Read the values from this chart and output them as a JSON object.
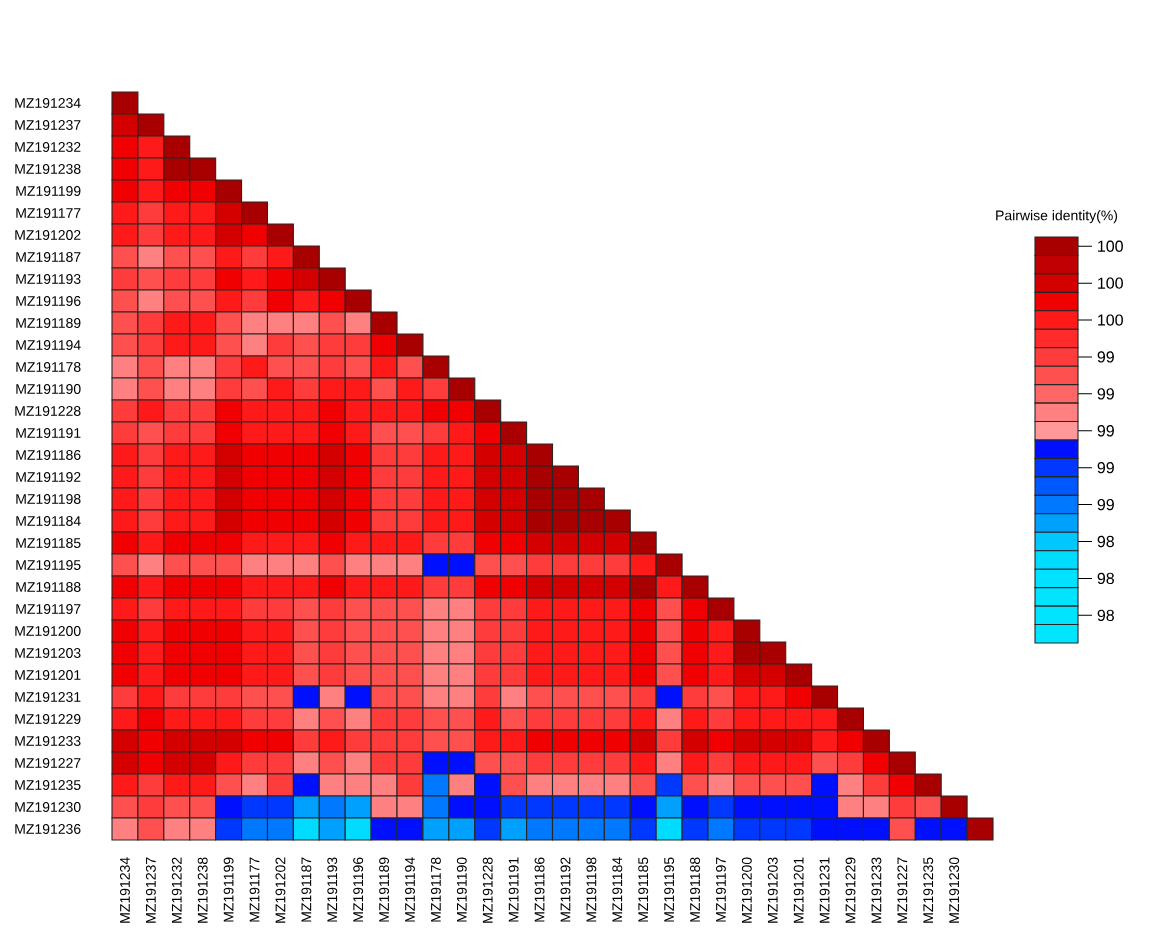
{
  "chart_data": {
    "type": "heatmap",
    "clabel": "Pairwise identity(%)",
    "categories": [
      "MZ191234",
      "MZ191237",
      "MZ191232",
      "MZ191238",
      "MZ191199",
      "MZ191177",
      "MZ191202",
      "MZ191187",
      "MZ191193",
      "MZ191196",
      "MZ191189",
      "MZ191194",
      "MZ191178",
      "MZ191190",
      "MZ191228",
      "MZ191191",
      "MZ191186",
      "MZ191192",
      "MZ191198",
      "MZ191184",
      "MZ191185",
      "MZ191195",
      "MZ191188",
      "MZ191197",
      "MZ191200",
      "MZ191203",
      "MZ191201",
      "MZ191231",
      "MZ191229",
      "MZ191233",
      "MZ191227",
      "MZ191235",
      "MZ191230",
      null
    ],
    "y_categories": [
      "MZ191234",
      "MZ191237",
      "MZ191232",
      "MZ191238",
      "MZ191199",
      "MZ191177",
      "MZ191202",
      "MZ191187",
      "MZ191193",
      "MZ191196",
      "MZ191189",
      "MZ191194",
      "MZ191178",
      "MZ191190",
      "MZ191228",
      "MZ191191",
      "MZ191186",
      "MZ191192",
      "MZ191198",
      "MZ191184",
      "MZ191185",
      "MZ191195",
      "MZ191188",
      "MZ191197",
      "MZ191200",
      "MZ191203",
      "MZ191201",
      "MZ191231",
      "MZ191229",
      "MZ191233",
      "MZ191227",
      "MZ191235",
      "MZ191230",
      "MZ191236"
    ],
    "clim": [
      97.8,
      100.0
    ],
    "cticks": [
      {
        "value": 99.95,
        "label": "100"
      },
      {
        "value": 99.75,
        "label": "100"
      },
      {
        "value": 99.55,
        "label": "100"
      },
      {
        "value": 99.35,
        "label": "99"
      },
      {
        "value": 99.15,
        "label": "99"
      },
      {
        "value": 98.95,
        "label": "99"
      },
      {
        "value": 98.75,
        "label": "99"
      },
      {
        "value": 98.55,
        "label": "99"
      },
      {
        "value": 98.35,
        "label": "98"
      },
      {
        "value": 98.15,
        "label": "98"
      },
      {
        "value": 97.95,
        "label": "98"
      }
    ],
    "cells": [
      [
        99.95,
        null,
        null,
        null,
        null,
        null,
        null,
        null,
        null,
        null,
        null,
        null,
        null,
        null,
        null,
        null,
        null,
        null,
        null,
        null,
        null,
        null,
        null,
        null,
        null,
        null,
        null,
        null,
        null,
        null,
        null,
        null,
        null,
        null
      ],
      [
        99.75,
        99.95,
        null,
        null,
        null,
        null,
        null,
        null,
        null,
        null,
        null,
        null,
        null,
        null,
        null,
        null,
        null,
        null,
        null,
        null,
        null,
        null,
        null,
        null,
        null,
        null,
        null,
        null,
        null,
        null,
        null,
        null,
        null,
        null
      ],
      [
        99.65,
        99.55,
        99.95,
        null,
        null,
        null,
        null,
        null,
        null,
        null,
        null,
        null,
        null,
        null,
        null,
        null,
        null,
        null,
        null,
        null,
        null,
        null,
        null,
        null,
        null,
        null,
        null,
        null,
        null,
        null,
        null,
        null,
        null,
        null
      ],
      [
        99.65,
        99.55,
        99.95,
        99.95,
        null,
        null,
        null,
        null,
        null,
        null,
        null,
        null,
        null,
        null,
        null,
        null,
        null,
        null,
        null,
        null,
        null,
        null,
        null,
        null,
        null,
        null,
        null,
        null,
        null,
        null,
        null,
        null,
        null,
        null
      ],
      [
        99.65,
        99.55,
        99.65,
        99.65,
        99.95,
        null,
        null,
        null,
        null,
        null,
        null,
        null,
        null,
        null,
        null,
        null,
        null,
        null,
        null,
        null,
        null,
        null,
        null,
        null,
        null,
        null,
        null,
        null,
        null,
        null,
        null,
        null,
        null,
        null
      ],
      [
        99.55,
        99.35,
        99.55,
        99.55,
        99.75,
        99.95,
        null,
        null,
        null,
        null,
        null,
        null,
        null,
        null,
        null,
        null,
        null,
        null,
        null,
        null,
        null,
        null,
        null,
        null,
        null,
        null,
        null,
        null,
        null,
        null,
        null,
        null,
        null,
        null
      ],
      [
        99.55,
        99.35,
        99.55,
        99.55,
        99.75,
        99.65,
        99.95,
        null,
        null,
        null,
        null,
        null,
        null,
        null,
        null,
        null,
        null,
        null,
        null,
        null,
        null,
        null,
        null,
        null,
        null,
        null,
        null,
        null,
        null,
        null,
        null,
        null,
        null,
        null
      ],
      [
        99.25,
        99.05,
        99.25,
        99.25,
        99.55,
        99.35,
        99.55,
        99.95,
        null,
        null,
        null,
        null,
        null,
        null,
        null,
        null,
        null,
        null,
        null,
        null,
        null,
        null,
        null,
        null,
        null,
        null,
        null,
        null,
        null,
        null,
        null,
        null,
        null,
        null
      ],
      [
        99.35,
        99.25,
        99.35,
        99.35,
        99.65,
        99.55,
        99.65,
        99.75,
        99.95,
        null,
        null,
        null,
        null,
        null,
        null,
        null,
        null,
        null,
        null,
        null,
        null,
        null,
        null,
        null,
        null,
        null,
        null,
        null,
        null,
        null,
        null,
        null,
        null,
        null
      ],
      [
        99.25,
        99.05,
        99.25,
        99.25,
        99.55,
        99.35,
        99.65,
        99.55,
        99.65,
        99.95,
        null,
        null,
        null,
        null,
        null,
        null,
        null,
        null,
        null,
        null,
        null,
        null,
        null,
        null,
        null,
        null,
        null,
        null,
        null,
        null,
        null,
        null,
        null,
        null
      ],
      [
        99.25,
        99.35,
        99.55,
        99.55,
        99.25,
        99.05,
        99.05,
        99.05,
        99.25,
        99.05,
        99.95,
        null,
        null,
        null,
        null,
        null,
        null,
        null,
        null,
        null,
        null,
        null,
        null,
        null,
        null,
        null,
        null,
        null,
        null,
        null,
        null,
        null,
        null,
        null
      ],
      [
        99.25,
        99.35,
        99.55,
        99.55,
        99.25,
        99.05,
        99.35,
        99.25,
        99.35,
        99.35,
        99.65,
        99.95,
        null,
        null,
        null,
        null,
        null,
        null,
        null,
        null,
        null,
        null,
        null,
        null,
        null,
        null,
        null,
        null,
        null,
        null,
        null,
        null,
        null,
        null
      ],
      [
        99.05,
        99.25,
        99.05,
        99.05,
        99.35,
        99.55,
        99.25,
        99.25,
        99.35,
        99.25,
        99.55,
        99.25,
        99.95,
        null,
        null,
        null,
        null,
        null,
        null,
        null,
        null,
        null,
        null,
        null,
        null,
        null,
        null,
        null,
        null,
        null,
        null,
        null,
        null,
        null
      ],
      [
        99.05,
        99.25,
        99.05,
        99.05,
        99.35,
        99.25,
        99.55,
        99.35,
        99.55,
        99.55,
        99.25,
        99.55,
        99.35,
        99.95,
        null,
        null,
        null,
        null,
        null,
        null,
        null,
        null,
        null,
        null,
        null,
        null,
        null,
        null,
        null,
        null,
        null,
        null,
        null,
        null
      ],
      [
        99.35,
        99.55,
        99.35,
        99.35,
        99.65,
        99.55,
        99.55,
        99.55,
        99.65,
        99.55,
        99.55,
        99.55,
        99.65,
        99.65,
        99.95,
        null,
        null,
        null,
        null,
        null,
        null,
        null,
        null,
        null,
        null,
        null,
        null,
        null,
        null,
        null,
        null,
        null,
        null,
        null
      ],
      [
        99.35,
        99.25,
        99.35,
        99.35,
        99.65,
        99.55,
        99.55,
        99.55,
        99.65,
        99.55,
        99.25,
        99.25,
        99.35,
        99.55,
        99.65,
        99.95,
        null,
        null,
        null,
        null,
        null,
        null,
        null,
        null,
        null,
        null,
        null,
        null,
        null,
        null,
        null,
        null,
        null,
        null
      ],
      [
        99.55,
        99.35,
        99.55,
        99.55,
        99.75,
        99.65,
        99.65,
        99.65,
        99.75,
        99.65,
        99.35,
        99.35,
        99.55,
        99.55,
        99.75,
        99.75,
        99.95,
        null,
        null,
        null,
        null,
        null,
        null,
        null,
        null,
        null,
        null,
        null,
        null,
        null,
        null,
        null,
        null,
        null
      ],
      [
        99.55,
        99.35,
        99.55,
        99.55,
        99.75,
        99.65,
        99.65,
        99.65,
        99.75,
        99.65,
        99.35,
        99.35,
        99.55,
        99.55,
        99.75,
        99.75,
        99.95,
        99.95,
        null,
        null,
        null,
        null,
        null,
        null,
        null,
        null,
        null,
        null,
        null,
        null,
        null,
        null,
        null,
        null
      ],
      [
        99.55,
        99.35,
        99.55,
        99.55,
        99.75,
        99.65,
        99.65,
        99.65,
        99.75,
        99.65,
        99.35,
        99.35,
        99.55,
        99.55,
        99.75,
        99.75,
        99.95,
        99.95,
        99.95,
        null,
        null,
        null,
        null,
        null,
        null,
        null,
        null,
        null,
        null,
        null,
        null,
        null,
        null,
        null
      ],
      [
        99.55,
        99.35,
        99.55,
        99.55,
        99.75,
        99.65,
        99.65,
        99.65,
        99.75,
        99.65,
        99.35,
        99.35,
        99.55,
        99.55,
        99.75,
        99.75,
        99.95,
        99.95,
        99.95,
        99.95,
        null,
        null,
        null,
        null,
        null,
        null,
        null,
        null,
        null,
        null,
        null,
        null,
        null,
        null
      ],
      [
        99.65,
        99.55,
        99.65,
        99.65,
        99.65,
        99.55,
        99.55,
        99.55,
        99.65,
        99.55,
        99.55,
        99.55,
        99.35,
        99.35,
        99.65,
        99.65,
        99.75,
        99.75,
        99.75,
        99.75,
        99.95,
        null,
        null,
        null,
        null,
        null,
        null,
        null,
        null,
        null,
        null,
        null,
        null,
        null
      ],
      [
        99.25,
        99.05,
        99.25,
        99.25,
        99.25,
        99.05,
        99.05,
        99.05,
        99.25,
        99.05,
        99.05,
        99.05,
        98.85,
        98.85,
        99.25,
        99.25,
        99.35,
        99.35,
        99.35,
        99.35,
        99.55,
        99.95,
        null,
        null,
        null,
        null,
        null,
        null,
        null,
        null,
        null,
        null,
        null,
        null
      ],
      [
        99.65,
        99.55,
        99.65,
        99.65,
        99.65,
        99.55,
        99.55,
        99.55,
        99.65,
        99.55,
        99.55,
        99.55,
        99.35,
        99.35,
        99.65,
        99.65,
        99.75,
        99.75,
        99.75,
        99.75,
        99.95,
        99.55,
        99.95,
        null,
        null,
        null,
        null,
        null,
        null,
        null,
        null,
        null,
        null,
        null
      ],
      [
        99.55,
        99.35,
        99.55,
        99.55,
        99.55,
        99.35,
        99.35,
        99.25,
        99.35,
        99.25,
        99.25,
        99.25,
        99.05,
        99.05,
        99.35,
        99.35,
        99.55,
        99.55,
        99.55,
        99.55,
        99.65,
        99.25,
        99.65,
        99.95,
        null,
        null,
        null,
        null,
        null,
        null,
        null,
        null,
        null,
        null
      ],
      [
        99.65,
        99.55,
        99.65,
        99.65,
        99.65,
        99.55,
        99.55,
        99.25,
        99.35,
        99.25,
        99.25,
        99.25,
        99.05,
        99.05,
        99.35,
        99.35,
        99.55,
        99.55,
        99.55,
        99.55,
        99.65,
        99.25,
        99.65,
        99.55,
        99.95,
        null,
        null,
        null,
        null,
        null,
        null,
        null,
        null,
        null
      ],
      [
        99.65,
        99.55,
        99.65,
        99.65,
        99.65,
        99.55,
        99.55,
        99.25,
        99.35,
        99.25,
        99.25,
        99.25,
        99.05,
        99.05,
        99.35,
        99.35,
        99.55,
        99.55,
        99.55,
        99.55,
        99.65,
        99.25,
        99.65,
        99.55,
        99.95,
        99.95,
        null,
        null,
        null,
        null,
        null,
        null,
        null,
        null
      ],
      [
        99.65,
        99.55,
        99.65,
        99.65,
        99.65,
        99.55,
        99.55,
        99.25,
        99.35,
        99.25,
        99.25,
        99.25,
        99.05,
        99.05,
        99.35,
        99.35,
        99.55,
        99.55,
        99.55,
        99.55,
        99.65,
        99.25,
        99.65,
        99.55,
        99.75,
        99.75,
        99.95,
        null,
        null,
        null,
        null,
        null,
        null,
        null
      ],
      [
        99.35,
        99.55,
        99.35,
        99.35,
        99.35,
        99.25,
        99.25,
        98.85,
        99.05,
        98.85,
        99.25,
        99.25,
        99.05,
        99.05,
        99.35,
        99.05,
        99.25,
        99.25,
        99.25,
        99.25,
        99.35,
        98.85,
        99.35,
        99.25,
        99.55,
        99.55,
        99.65,
        99.95,
        null,
        null,
        null,
        null,
        null,
        null
      ],
      [
        99.55,
        99.65,
        99.55,
        99.55,
        99.55,
        99.35,
        99.35,
        99.05,
        99.25,
        99.05,
        99.35,
        99.35,
        99.25,
        99.25,
        99.55,
        99.25,
        99.35,
        99.35,
        99.35,
        99.35,
        99.55,
        99.05,
        99.55,
        99.35,
        99.55,
        99.55,
        99.55,
        99.55,
        99.95,
        null,
        null,
        null,
        null,
        null
      ],
      [
        99.75,
        99.65,
        99.75,
        99.75,
        99.75,
        99.65,
        99.65,
        99.35,
        99.55,
        99.35,
        99.35,
        99.35,
        99.25,
        99.25,
        99.55,
        99.55,
        99.65,
        99.65,
        99.65,
        99.65,
        99.75,
        99.35,
        99.75,
        99.65,
        99.75,
        99.75,
        99.75,
        99.55,
        99.65,
        99.95,
        null,
        null,
        null,
        null
      ],
      [
        99.75,
        99.65,
        99.75,
        99.75,
        99.55,
        99.35,
        99.35,
        99.05,
        99.25,
        99.05,
        99.35,
        99.35,
        98.85,
        98.85,
        99.25,
        99.25,
        99.35,
        99.35,
        99.35,
        99.35,
        99.55,
        99.05,
        99.55,
        99.35,
        99.55,
        99.55,
        99.55,
        99.25,
        99.35,
        99.65,
        99.95,
        null,
        null,
        null
      ],
      [
        99.55,
        99.35,
        99.55,
        99.55,
        99.25,
        99.05,
        99.35,
        98.85,
        99.05,
        99.05,
        99.05,
        99.35,
        98.55,
        99.05,
        98.85,
        99.25,
        99.05,
        99.05,
        99.05,
        99.05,
        99.25,
        98.75,
        99.25,
        99.05,
        99.25,
        99.25,
        99.25,
        98.85,
        99.05,
        99.35,
        99.65,
        99.95,
        null,
        null
      ],
      [
        99.25,
        99.35,
        99.25,
        99.25,
        98.85,
        98.75,
        98.75,
        98.45,
        98.55,
        98.45,
        99.05,
        99.05,
        98.55,
        98.85,
        98.85,
        98.75,
        98.75,
        98.75,
        98.75,
        98.75,
        98.85,
        98.45,
        98.85,
        98.75,
        98.85,
        98.85,
        98.85,
        98.85,
        99.05,
        99.05,
        99.35,
        99.25,
        99.95,
        null
      ],
      [
        99.05,
        99.25,
        99.05,
        99.05,
        98.75,
        98.55,
        98.55,
        98.25,
        98.45,
        98.25,
        98.85,
        98.85,
        98.45,
        98.45,
        98.75,
        98.45,
        98.55,
        98.55,
        98.55,
        98.55,
        98.75,
        98.25,
        98.75,
        98.55,
        98.75,
        98.75,
        98.75,
        98.85,
        98.85,
        98.85,
        99.25,
        98.85,
        98.85,
        99.95
      ]
    ]
  }
}
